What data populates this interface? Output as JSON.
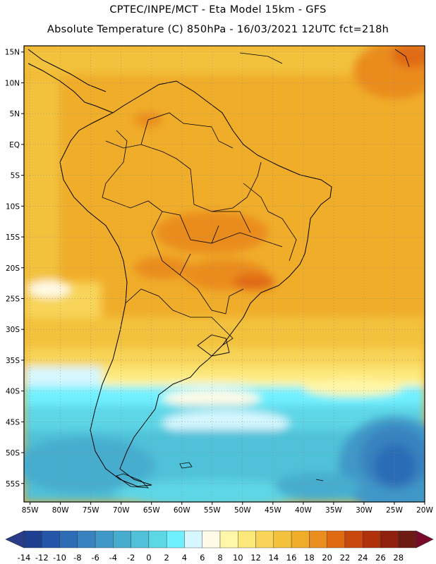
{
  "header": {
    "line1": "CPTEC/INPE/MCT -  Eta Model 15km - GFS",
    "line2": "Absolute Temperature (C) 850hPa - 16/03/2021 12UTC fct=218h"
  },
  "map": {
    "lat_labels": [
      "15N",
      "10N",
      "5N",
      "EQ",
      "5S",
      "10S",
      "15S",
      "20S",
      "25S",
      "30S",
      "35S",
      "40S",
      "45S",
      "50S",
      "55S"
    ],
    "lon_labels": [
      "85W",
      "80W",
      "75W",
      "70W",
      "65W",
      "60W",
      "55W",
      "50W",
      "45W",
      "40W",
      "35W",
      "30W",
      "25W",
      "20W"
    ],
    "extent": {
      "lon_min": -86,
      "lon_max": -20,
      "lat_min": -58,
      "lat_max": 16
    }
  },
  "colorbar": {
    "labels": [
      "-14",
      "-12",
      "-10",
      "-8",
      "-6",
      "-4",
      "-2",
      "0",
      "2",
      "4",
      "6",
      "8",
      "10",
      "12",
      "14",
      "16",
      "18",
      "20",
      "22",
      "24",
      "26",
      "28"
    ],
    "colors": [
      "#1e3f8f",
      "#2456a8",
      "#2c6db6",
      "#3882c0",
      "#3f98c8",
      "#46adcf",
      "#50c1d8",
      "#5dd6e6",
      "#6ff0ff",
      "#d6f7ff",
      "#fffbe6",
      "#fff7a8",
      "#fde87a",
      "#f8d458",
      "#f3c23c",
      "#f0ad2a",
      "#ea8c1e",
      "#e06a12",
      "#c9480e",
      "#b0300c",
      "#8e200c",
      "#6e1a14"
    ],
    "under_color": "#2a3b8a",
    "over_color": "#7a0a2a"
  }
}
